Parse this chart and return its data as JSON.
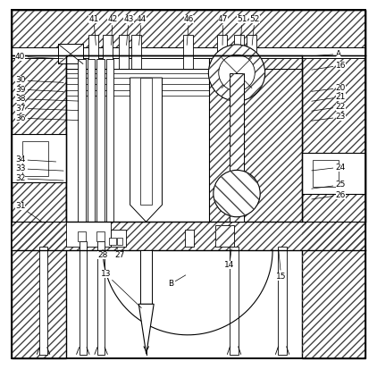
{
  "bg_color": "#ffffff",
  "line_color": "#000000",
  "fig_width": 4.22,
  "fig_height": 4.23,
  "labels_top": {
    "41": [
      0.235,
      0.945,
      0.255,
      0.875
    ],
    "42": [
      0.285,
      0.945,
      0.295,
      0.875
    ],
    "43": [
      0.328,
      0.945,
      0.335,
      0.875
    ],
    "44": [
      0.362,
      0.945,
      0.368,
      0.875
    ],
    "46": [
      0.488,
      0.945,
      0.495,
      0.875
    ],
    "47": [
      0.578,
      0.945,
      0.59,
      0.875
    ],
    "51": [
      0.628,
      0.945,
      0.638,
      0.875
    ],
    "52": [
      0.662,
      0.945,
      0.668,
      0.875
    ]
  },
  "labels_left": {
    "40": [
      0.04,
      0.845,
      0.175,
      0.845
    ],
    "30": [
      0.04,
      0.782,
      0.175,
      0.782
    ],
    "39": [
      0.04,
      0.758,
      0.175,
      0.758
    ],
    "38": [
      0.04,
      0.733,
      0.215,
      0.733
    ],
    "37": [
      0.04,
      0.708,
      0.215,
      0.708
    ],
    "36": [
      0.04,
      0.682,
      0.215,
      0.682
    ],
    "34": [
      0.04,
      0.572,
      0.155,
      0.572
    ],
    "33": [
      0.04,
      0.548,
      0.175,
      0.548
    ],
    "32": [
      0.04,
      0.522,
      0.175,
      0.522
    ],
    "31": [
      0.04,
      0.448,
      0.115,
      0.41
    ]
  },
  "labels_right": {
    "A": [
      0.89,
      0.852,
      0.82,
      0.852
    ],
    "16": [
      0.89,
      0.822,
      0.82,
      0.815
    ],
    "20": [
      0.89,
      0.762,
      0.82,
      0.758
    ],
    "21": [
      0.89,
      0.738,
      0.82,
      0.732
    ],
    "22": [
      0.89,
      0.712,
      0.82,
      0.706
    ],
    "23": [
      0.89,
      0.685,
      0.82,
      0.68
    ],
    "24": [
      0.89,
      0.552,
      0.82,
      0.548
    ],
    "25": [
      0.89,
      0.505,
      0.82,
      0.5
    ],
    "26": [
      0.89,
      0.478,
      0.82,
      0.472
    ]
  },
  "labels_bot": {
    "28": [
      0.258,
      0.318,
      0.282,
      0.348
    ],
    "27": [
      0.305,
      0.318,
      0.308,
      0.348
    ],
    "13": [
      0.268,
      0.268,
      0.38,
      0.18
    ],
    "14": [
      0.595,
      0.292,
      0.615,
      0.348
    ],
    "15": [
      0.732,
      0.262,
      0.738,
      0.348
    ],
    "B": [
      0.445,
      0.242,
      0.498,
      0.275
    ]
  }
}
